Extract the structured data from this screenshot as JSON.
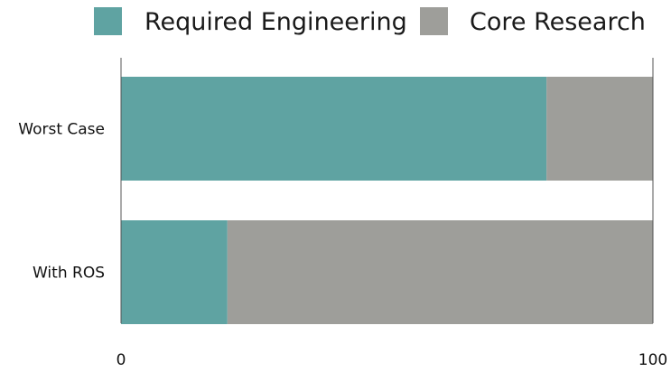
{
  "chart_data": {
    "type": "bar",
    "orientation": "horizontal",
    "stacked": true,
    "categories": [
      "Worst Case",
      "With ROS"
    ],
    "series": [
      {
        "name": "Required Engineering",
        "values": [
          80,
          20
        ]
      },
      {
        "name": "Core Research",
        "values": [
          20,
          80
        ]
      }
    ],
    "xlim": [
      0,
      100
    ],
    "xticks": [
      "0",
      "100"
    ],
    "legend_position": "top",
    "grid": false,
    "colors": {
      "required_engineering": "#5fa3a2",
      "core_research": "#9e9e9a",
      "axis": "#555555"
    }
  }
}
